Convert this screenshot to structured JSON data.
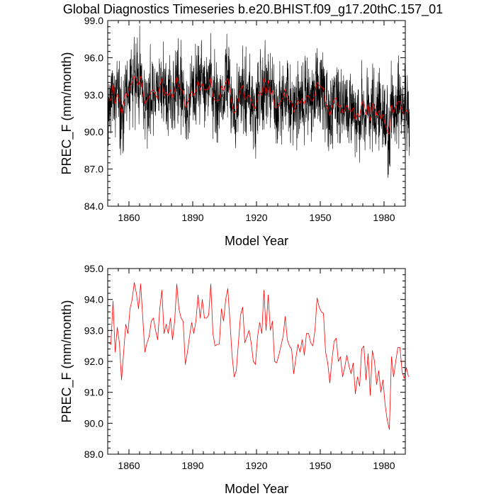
{
  "title": "Global Diagnostics Timeseries b.e20.BHIST.f09_g17.20thC.157_01",
  "chart_data": [
    {
      "type": "line",
      "name": "monthly-and-annual",
      "xlabel": "Model Year",
      "ylabel": "PREC_F (mm/month)",
      "xlim": [
        1850,
        1990
      ],
      "ylim": [
        84.0,
        99.0
      ],
      "xticks": [
        1860,
        1890,
        1920,
        1950,
        1980
      ],
      "xtick_labels": [
        "1860",
        "1890",
        "1920",
        "1950",
        "1980"
      ],
      "yticks": [
        84,
        87,
        90,
        93,
        96,
        99
      ],
      "ytick_labels": [
        "84.0",
        "87.0",
        "90.0",
        "93.0",
        "96.0",
        "99.0"
      ],
      "series": [
        {
          "name": "monthly",
          "color": "#000000",
          "generator": "monthly-noise",
          "amplitude": 1.6,
          "seed": 157
        },
        {
          "name": "annual",
          "color": "#ff0000",
          "ref": "annual"
        }
      ]
    },
    {
      "type": "line",
      "name": "annual",
      "xlabel": "Model Year",
      "ylabel": "PREC_F (mm/month)",
      "xlim": [
        1850,
        1990
      ],
      "ylim": [
        89.0,
        95.0
      ],
      "xticks": [
        1860,
        1890,
        1920,
        1950,
        1980
      ],
      "xtick_labels": [
        "1860",
        "1890",
        "1920",
        "1950",
        "1980"
      ],
      "yticks": [
        89,
        90,
        91,
        92,
        93,
        94,
        95
      ],
      "ytick_labels": [
        "89.0",
        "90.0",
        "91.0",
        "92.0",
        "93.0",
        "94.0",
        "95.0"
      ],
      "series": [
        {
          "name": "annual",
          "color": "#ff0000",
          "ref": "annual"
        }
      ]
    }
  ],
  "annual": {
    "x_start": 1850,
    "values": [
      92.6,
      92.55,
      93.95,
      92.3,
      93.1,
      92.6,
      91.4,
      92.3,
      93.2,
      92.9,
      93.7,
      94.0,
      94.55,
      94.2,
      93.7,
      94.5,
      93.4,
      92.3,
      92.6,
      92.8,
      93.3,
      93.4,
      93.0,
      92.7,
      93.7,
      94.3,
      92.9,
      93.2,
      92.9,
      93.4,
      92.7,
      93.3,
      94.5,
      93.7,
      93.4,
      93.3,
      91.9,
      92.3,
      92.8,
      93.25,
      92.9,
      93.3,
      94.15,
      93.4,
      94.0,
      93.4,
      93.4,
      93.5,
      94.5,
      92.9,
      92.5,
      92.55,
      92.55,
      93.7,
      93.3,
      94.0,
      94.35,
      93.3,
      92.2,
      91.5,
      91.7,
      92.6,
      93.5,
      93.75,
      92.6,
      92.8,
      93.0,
      92.6,
      92.0,
      91.9,
      92.8,
      93.25,
      92.9,
      94.3,
      93.0,
      94.15,
      93.0,
      93.3,
      92.0,
      91.95,
      92.2,
      92.5,
      92.8,
      93.45,
      92.7,
      92.5,
      92.4,
      91.6,
      92.1,
      92.55,
      92.3,
      92.7,
      92.2,
      92.9,
      92.9,
      92.6,
      92.5,
      93.0,
      94.05,
      93.75,
      93.6,
      93.55,
      92.3,
      91.95,
      91.3,
      92.05,
      92.65,
      92.75,
      92.0,
      92.15,
      91.5,
      91.8,
      92.2,
      91.85,
      91.6,
      91.95,
      90.95,
      91.5,
      91.2,
      92.4,
      92.5,
      91.4,
      92.25,
      90.9,
      92.35,
      92.0,
      91.25,
      91.7,
      91.0,
      91.4,
      90.6,
      90.1,
      89.8,
      92.15,
      91.5,
      92.0,
      92.45,
      92.45,
      91.65,
      91.45,
      91.8,
      91.5
    ]
  }
}
